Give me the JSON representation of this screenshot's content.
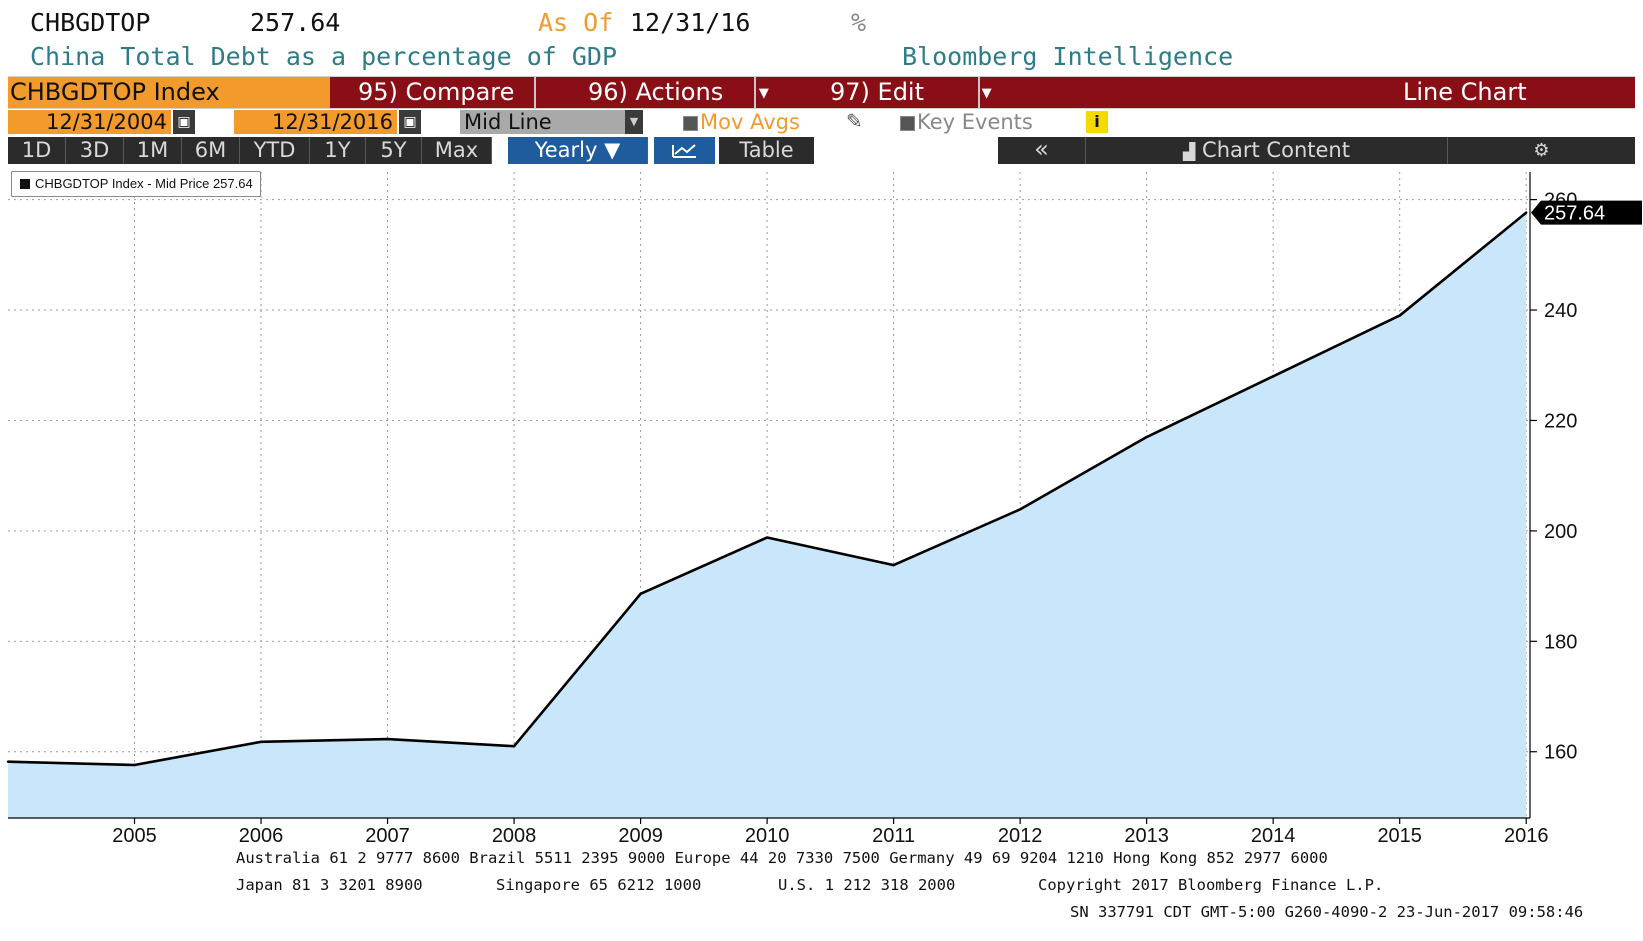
{
  "header": {
    "ticker": "CHBGDTOP",
    "last_price": "257.64",
    "as_of_label": "As Of",
    "as_of_date": "12/31/16",
    "pct_sign": "%",
    "description": "China Total Debt as a percentage of GDP",
    "brand": "Bloomberg Intelligence"
  },
  "toolbar": {
    "index_label": "CHBGDTOP Index",
    "compare_label": "95) Compare",
    "actions_label": "96) Actions",
    "edit_label": "97) Edit",
    "chart_type_label": "Line Chart"
  },
  "range": {
    "start": "12/31/2004",
    "separator": "-",
    "end": "12/31/2016",
    "price_type": "Mid Line",
    "mov_avgs_label": "Mov Avgs",
    "key_events_label": "Key Events",
    "info_label": "i"
  },
  "periods": {
    "buttons": [
      "1D",
      "3D",
      "1M",
      "6M",
      "YTD",
      "1Y",
      "5Y",
      "Max"
    ],
    "yearly_label": "Yearly ▼",
    "table_label": "Table",
    "collapse_label": "«",
    "chart_content_label": "Chart Content",
    "settings_label": "⚙"
  },
  "legend": {
    "text": "CHBGDTOP Index - Mid Price 257.64"
  },
  "chart_data": {
    "type": "area",
    "title": "",
    "xlabel": "",
    "ylabel": "",
    "x": [
      2004,
      2005,
      2006,
      2007,
      2008,
      2009,
      2010,
      2011,
      2012,
      2013,
      2014,
      2015,
      2016
    ],
    "series": [
      {
        "name": "CHBGDTOP Index - Mid Price",
        "values": [
          158.2,
          157.6,
          161.8,
          162.3,
          161.0,
          188.6,
          198.8,
          193.8,
          203.9,
          217.0,
          228.0,
          239.0,
          257.64
        ]
      }
    ],
    "xticks": [
      2005,
      2006,
      2007,
      2008,
      2009,
      2010,
      2011,
      2012,
      2013,
      2014,
      2015,
      2016
    ],
    "yticks": [
      160,
      180,
      200,
      220,
      240,
      260
    ],
    "ylim": [
      148,
      265
    ],
    "last_value_label": "257.64",
    "grid": true,
    "legend_position": "top-left",
    "colors": {
      "line": "#000000",
      "fill": "#c9e6fa",
      "grid": "#9a9a9a",
      "last_value_bg": "#000000"
    }
  },
  "footer": {
    "line1": "Australia 61 2 9777 8600 Brazil 5511 2395 9000 Europe 44 20 7330 7500 Germany 49 69 9204 1210 Hong Kong 852 2977 6000",
    "line2_japan": "Japan 81 3 3201 8900",
    "line2_singapore": "Singapore 65 6212 1000",
    "line2_us": "U.S. 1 212 318 2000",
    "line2_copyright": "Copyright 2017 Bloomberg Finance L.P.",
    "line3": "SN 337791 CDT  GMT-5:00 G260-4090-2 23-Jun-2017 09:58:46"
  }
}
